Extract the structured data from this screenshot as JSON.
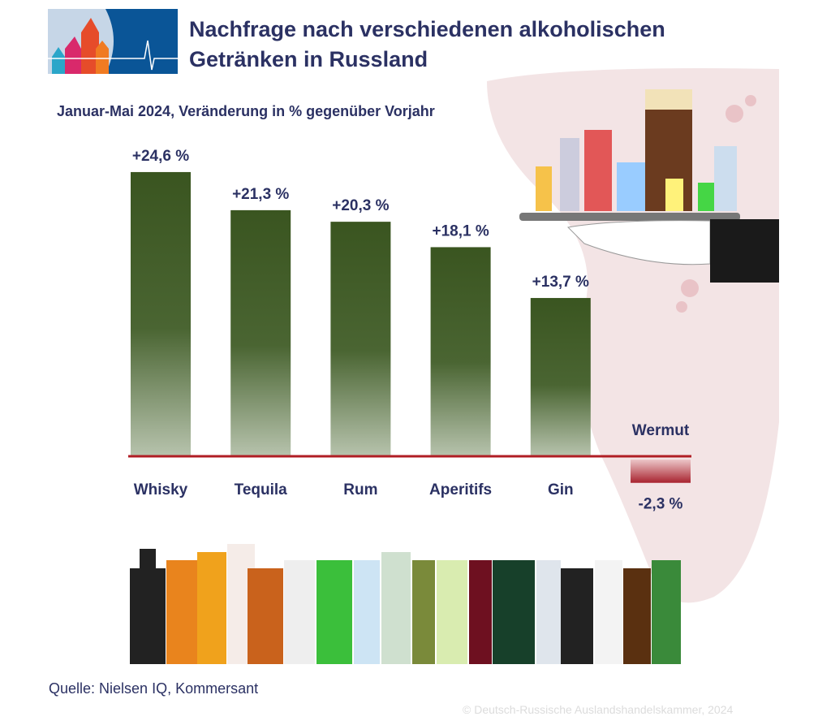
{
  "header": {
    "title_line1": "Nachfrage nach verschiedenen alkoholischen",
    "title_line2": "Getränken in Russland",
    "subtitle": "Januar-Mai 2024, Veränderung in % gegenüber Vorjahr"
  },
  "footer": {
    "source": "Quelle: Nielsen IQ, Kommersant",
    "copyright": "© Deutsch-Russische Auslandshandelskammer, 2024"
  },
  "colors": {
    "positive_bar": "#3f5b25",
    "negative_bar": "#a8232f",
    "axis": "#b01e24",
    "text": "#2b3163",
    "background_blob": "#f3e4e5"
  },
  "chart_data": {
    "type": "bar",
    "title": "Nachfrage nach verschiedenen alkoholischen Getränken in Russland",
    "subtitle": "Januar-Mai 2024, Veränderung in % gegenüber Vorjahr",
    "categories": [
      "Whisky",
      "Tequila",
      "Rum",
      "Aperitifs",
      "Gin",
      "Wermut"
    ],
    "values": [
      24.6,
      21.3,
      20.3,
      18.1,
      13.7,
      -2.3
    ],
    "data_labels": [
      "+24,6 %",
      "+21,3 %",
      "+20,3 %",
      "+18,1 %",
      "+13,7 %",
      "-2,3 %"
    ],
    "unit": "%",
    "grid": false,
    "legend": "none"
  }
}
